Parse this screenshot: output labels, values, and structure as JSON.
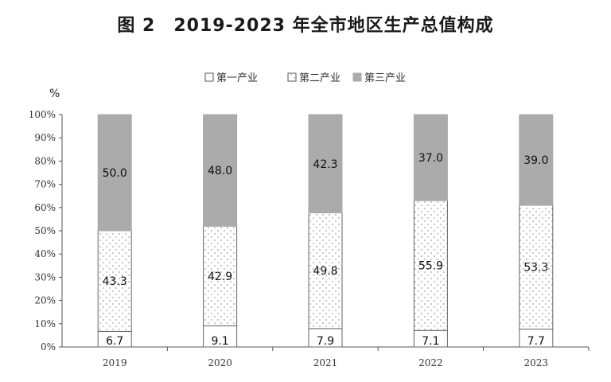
{
  "chart_data": {
    "type": "bar",
    "stacked": true,
    "title": "图 2　2019-2023 年全市地区生产总值构成",
    "ylabel": "%",
    "ylim": [
      0,
      100
    ],
    "yticks": [
      "0%",
      "10%",
      "20%",
      "30%",
      "40%",
      "50%",
      "60%",
      "70%",
      "80%",
      "90%",
      "100%"
    ],
    "categories": [
      "2019",
      "2020",
      "2021",
      "2022",
      "2023"
    ],
    "series": [
      {
        "name": "第一产业",
        "values": [
          6.7,
          9.1,
          7.9,
          7.1,
          7.7
        ],
        "pattern": "blank",
        "color": "#ffffff"
      },
      {
        "name": "第二产业",
        "values": [
          43.3,
          42.9,
          49.8,
          55.9,
          53.3
        ],
        "pattern": "dots",
        "color": "#ffffff"
      },
      {
        "name": "第三产业",
        "values": [
          50.0,
          48.0,
          42.3,
          37.0,
          39.0
        ],
        "pattern": "solid",
        "color": "#ababab"
      }
    ],
    "legend_position": "top-center",
    "grid": false
  }
}
